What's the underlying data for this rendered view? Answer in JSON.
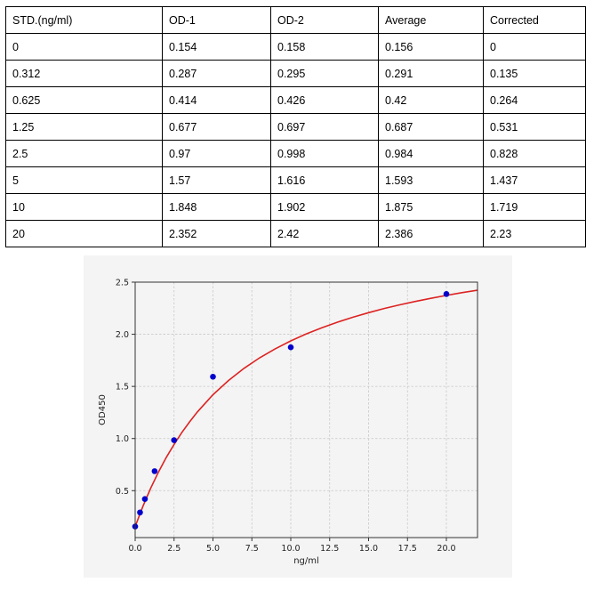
{
  "table": {
    "headers": [
      "STD.(ng/ml)",
      "OD-1",
      "OD-2",
      "Average",
      "Corrected"
    ],
    "rows": [
      [
        "0",
        "0.154",
        "0.158",
        "0.156",
        "0"
      ],
      [
        "0.312",
        "0.287",
        "0.295",
        "0.291",
        "0.135"
      ],
      [
        "0.625",
        "0.414",
        "0.426",
        "0.42",
        "0.264"
      ],
      [
        "1.25",
        "0.677",
        "0.697",
        "0.687",
        "0.531"
      ],
      [
        "2.5",
        "0.97",
        "0.998",
        "0.984",
        "0.828"
      ],
      [
        "5",
        "1.57",
        "1.616",
        "1.593",
        "1.437"
      ],
      [
        "10",
        "1.848",
        "1.902",
        "1.875",
        "1.719"
      ],
      [
        "20",
        "2.352",
        "2.42",
        "2.386",
        "2.23"
      ]
    ]
  },
  "chart_data": {
    "type": "scatter",
    "xlabel": "ng/ml",
    "ylabel": "OD450",
    "xlim": [
      0,
      22
    ],
    "ylim": [
      0.05,
      2.5
    ],
    "x_ticks": [
      "0.0",
      "2.5",
      "5.0",
      "7.5",
      "10.0",
      "12.5",
      "15.0",
      "17.5",
      "20.0"
    ],
    "y_ticks": [
      "0.5",
      "1.0",
      "1.5",
      "2.0",
      "2.5"
    ],
    "grid": true,
    "points": {
      "x": [
        0,
        0.312,
        0.625,
        1.25,
        2.5,
        5,
        10,
        20
      ],
      "y": [
        0.156,
        0.291,
        0.42,
        0.687,
        0.984,
        1.593,
        1.875,
        2.386
      ],
      "color": "#0000cc"
    },
    "fit_curve": {
      "color": "#dd2222",
      "x": [
        0,
        0.5,
        1,
        1.5,
        2,
        2.5,
        3,
        3.5,
        4,
        5,
        6,
        7,
        8,
        9,
        10,
        11,
        12,
        13,
        14,
        15,
        16,
        17,
        18,
        19,
        20,
        21,
        22
      ],
      "y": [
        0.156,
        0.351,
        0.525,
        0.68,
        0.819,
        0.944,
        1.058,
        1.161,
        1.255,
        1.42,
        1.557,
        1.674,
        1.774,
        1.861,
        1.937,
        2.004,
        2.063,
        2.116,
        2.164,
        2.207,
        2.247,
        2.282,
        2.315,
        2.345,
        2.373,
        2.399,
        2.422
      ]
    }
  }
}
